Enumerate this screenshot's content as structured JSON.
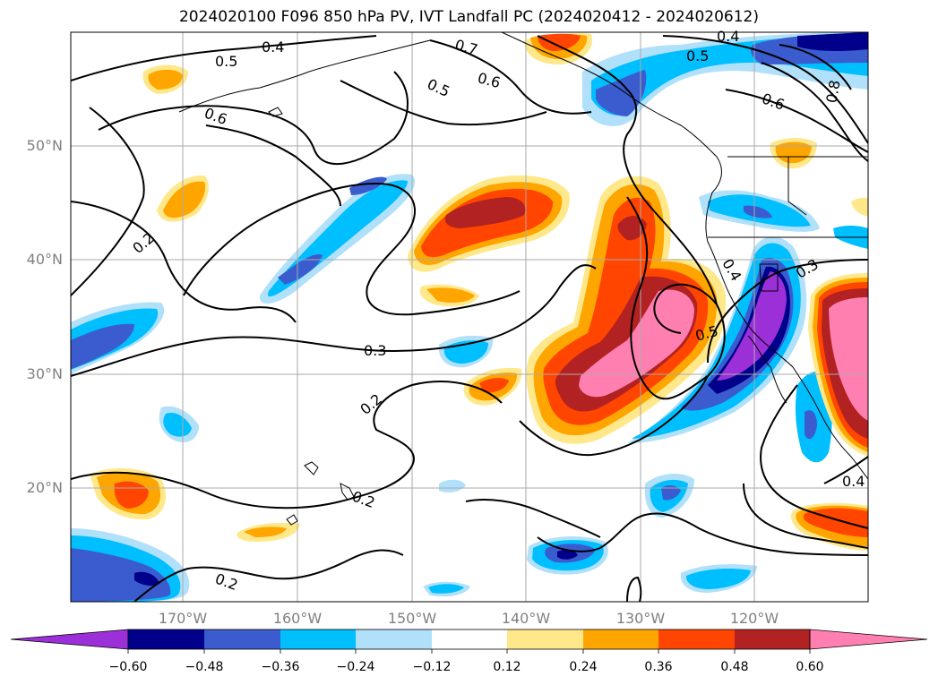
{
  "title": "2024020100 F096 850 hPa PV, IVT Landfall PC (2024020412 - 2024020612)",
  "lat_labels": [
    "50°N",
    "40°N",
    "30°N",
    "20°N"
  ],
  "lon_labels": [
    "170°W",
    "160°W",
    "150°W",
    "140°W",
    "130°W",
    "120°W"
  ],
  "colorbar": {
    "ticks": [
      "−0.60",
      "−0.48",
      "−0.36",
      "−0.24",
      "−0.12",
      "0.12",
      "0.24",
      "0.36",
      "0.48",
      "0.60"
    ],
    "colors": [
      "#9b30d9",
      "#00008b",
      "#3b5ccf",
      "#00bfff",
      "#b0e0fa",
      "#ffffff",
      "#ffe88a",
      "#ffa500",
      "#ff4500",
      "#b22222",
      "#ff80b0"
    ],
    "extend": "both"
  },
  "contour_labels": [
    "0.4",
    "0.5",
    "0.6",
    "0.7",
    "0.6",
    "0.5",
    "0.5",
    "0.4",
    "0.6",
    "0.8",
    "0.2",
    "0.3",
    "0.2",
    "0.2",
    "0.2",
    "0.4",
    "0.3",
    "0.5",
    "0.4"
  ],
  "fill_colors": {
    "neg_extreme": "#9b30d9",
    "neg_048": "#00008b",
    "neg_036": "#3b5ccf",
    "neg_024": "#00bfff",
    "neg_012": "#b0e0fa",
    "pos_012": "#ffe88a",
    "pos_024": "#ffa500",
    "pos_036": "#ff4500",
    "pos_048": "#b22222",
    "pos_extreme": "#ff80b0"
  }
}
